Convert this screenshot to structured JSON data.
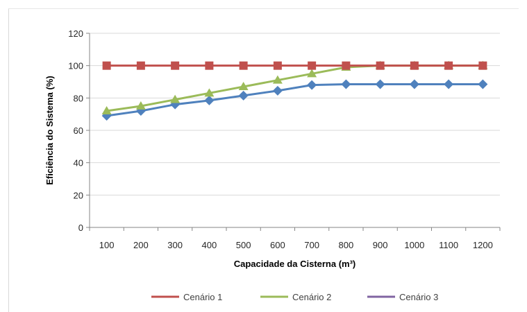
{
  "chart_data": {
    "type": "line",
    "xlabel": "Capacidade da Cisterna (m³)",
    "ylabel": "Eficiência do Sistema (%)",
    "categories": [
      "100",
      "200",
      "300",
      "400",
      "500",
      "600",
      "700",
      "800",
      "900",
      "1000",
      "1100",
      "1200"
    ],
    "ylim": [
      0,
      120
    ],
    "yticks": [
      0,
      20,
      40,
      60,
      80,
      100,
      120
    ],
    "grid": "horizontal",
    "legend_position": "bottom",
    "series": [
      {
        "name": "Cenário 1",
        "color": "#C0504D",
        "marker": "square",
        "values": [
          100,
          100,
          100,
          100,
          100,
          100,
          100,
          100,
          100,
          100,
          100,
          100
        ]
      },
      {
        "name": "Cenário 2",
        "color": "#9BBB59",
        "marker": "triangle",
        "values": [
          72,
          75,
          79,
          83,
          87,
          91,
          95,
          99,
          100,
          100,
          100,
          100
        ]
      },
      {
        "name": "Cenário 3",
        "color": "#4F81BD",
        "marker": "diamond",
        "legend_color": "#8064A2",
        "values": [
          69,
          72,
          76,
          78.5,
          81.5,
          84.5,
          88,
          88.5,
          88.5,
          88.5,
          88.5,
          88.5
        ]
      }
    ]
  }
}
